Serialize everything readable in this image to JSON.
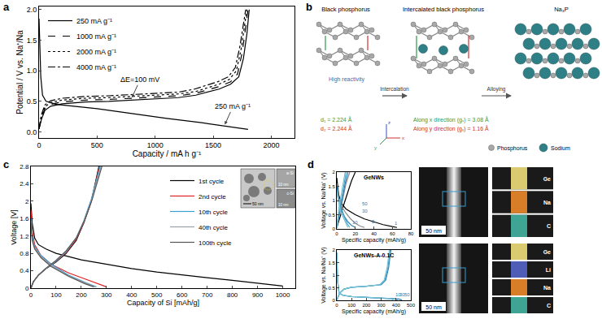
{
  "panel_labels": [
    "a",
    "b",
    "c",
    "d"
  ],
  "chart_data": [
    {
      "type": "line",
      "xlabel": "Capacity / mA h g⁻¹",
      "ylabel": "Potential / V vs. Na⁺/Na",
      "xlim": [
        0,
        2200
      ],
      "xticks": [
        0,
        500,
        1000,
        1500,
        2000
      ],
      "ylim": [
        -0.1,
        2.05
      ],
      "yticks": [
        {
          "value": 0,
          "label": "0.0"
        },
        0.5,
        {
          "value": 1,
          "label": "1.0"
        },
        1.5,
        {
          "value": 2,
          "label": "2.0"
        }
      ],
      "legend": "upper left",
      "series": [
        {
          "name": "250 mA g⁻¹",
          "color": "#000000",
          "line_style": "solid",
          "x": [
            0,
            5,
            15,
            30,
            60,
            150,
            300,
            500,
            800,
            1100,
            1400,
            1600,
            1750,
            1800,
            null,
            0,
            20,
            50,
            100,
            200,
            400,
            600,
            800,
            1000,
            1200,
            1350,
            1450,
            1550,
            1650,
            1720,
            1760,
            1790,
            1810
          ],
          "y": [
            1.85,
            1.4,
            0.9,
            0.6,
            0.5,
            0.45,
            0.42,
            0.38,
            0.3,
            0.22,
            0.15,
            0.1,
            0.06,
            0.04,
            null,
            0.05,
            0.2,
            0.35,
            0.42,
            0.46,
            0.49,
            0.5,
            0.52,
            0.54,
            0.56,
            0.6,
            0.65,
            0.7,
            0.78,
            0.9,
            1.2,
            1.6,
            2.0
          ]
        },
        {
          "name": "1000 mA g⁻¹",
          "color": "#000000",
          "line_style": "dash",
          "x": [
            0,
            20,
            50,
            100,
            200,
            400,
            600,
            800,
            1000,
            1200,
            1350,
            1450,
            1550,
            1650,
            1710,
            1750,
            1780,
            1800
          ],
          "y": [
            0.05,
            0.22,
            0.38,
            0.45,
            0.49,
            0.52,
            0.53,
            0.55,
            0.57,
            0.59,
            0.63,
            0.68,
            0.74,
            0.82,
            0.95,
            1.3,
            1.7,
            2.0
          ]
        },
        {
          "name": "2000 mA g⁻¹",
          "color": "#000000",
          "line_style": "dot",
          "x": [
            0,
            20,
            50,
            100,
            200,
            400,
            600,
            800,
            1000,
            1200,
            1350,
            1450,
            1550,
            1640,
            1700,
            1740,
            1770,
            1790
          ],
          "y": [
            0.05,
            0.25,
            0.41,
            0.48,
            0.52,
            0.55,
            0.56,
            0.58,
            0.6,
            0.62,
            0.66,
            0.72,
            0.78,
            0.86,
            1.0,
            1.35,
            1.75,
            2.0
          ]
        },
        {
          "name": "4000 mA g⁻¹",
          "color": "#000000",
          "line_style": "dashdot",
          "x": [
            0,
            20,
            50,
            100,
            200,
            400,
            600,
            800,
            1000,
            1200,
            1340,
            1440,
            1540,
            1630,
            1690,
            1730,
            1760,
            1780
          ],
          "y": [
            0.05,
            0.28,
            0.44,
            0.51,
            0.55,
            0.58,
            0.59,
            0.61,
            0.63,
            0.65,
            0.7,
            0.76,
            0.82,
            0.9,
            1.05,
            1.4,
            1.8,
            2.0
          ]
        }
      ],
      "annotations": [
        {
          "text": "ΔE=100 mV",
          "x": 800,
          "y": 0.56,
          "arrow": true
        },
        {
          "text": "250 mA g⁻¹",
          "x": 1600,
          "y": 0.12,
          "arrow": true
        }
      ]
    },
    {
      "type": "line",
      "xlabel": "Capacity of Si [mAh/g]",
      "ylabel": "Voltage [V]",
      "xlim": [
        0,
        1050
      ],
      "xticks": [
        0,
        100,
        200,
        300,
        400,
        500,
        600,
        700,
        800,
        900,
        1000
      ],
      "ylim": [
        0,
        2.8
      ],
      "yticks": [
        0,
        0.4,
        0.8,
        1.2,
        1.6,
        2,
        2.4,
        2.8
      ],
      "legend": "upper right",
      "series": [
        {
          "name": "1st cycle",
          "color": "#000000",
          "line_style": "solid",
          "x": [
            0,
            5,
            15,
            30,
            60,
            100,
            200,
            300,
            400,
            500,
            600,
            700,
            800,
            900,
            1000,
            null,
            0,
            10,
            30,
            60,
            100,
            140,
            180,
            210,
            240,
            260,
            270
          ],
          "y": [
            1.95,
            1.5,
            1.15,
            1.0,
            0.9,
            0.8,
            0.65,
            0.55,
            0.45,
            0.37,
            0.3,
            0.24,
            0.18,
            0.12,
            0.05,
            null,
            0,
            0.15,
            0.3,
            0.45,
            0.6,
            0.8,
            1.1,
            1.5,
            2.0,
            2.5,
            2.8
          ]
        },
        {
          "name": "2nd cycle",
          "color": "#e02020",
          "line_style": "solid",
          "x": [
            0,
            5,
            15,
            40,
            80,
            150,
            220,
            280,
            300,
            null,
            0,
            10,
            30,
            60,
            100,
            140,
            180,
            210,
            240,
            260,
            272
          ],
          "y": [
            1.8,
            1.3,
            1.0,
            0.75,
            0.55,
            0.35,
            0.2,
            0.08,
            0.03,
            null,
            0,
            0.15,
            0.3,
            0.45,
            0.62,
            0.82,
            1.12,
            1.5,
            2.0,
            2.5,
            2.8
          ]
        },
        {
          "name": "10th cycle",
          "color": "#3aa0d8",
          "line_style": "solid",
          "x": [
            0,
            5,
            15,
            40,
            80,
            150,
            220,
            260,
            null,
            0,
            10,
            30,
            60,
            100,
            140,
            180,
            210,
            240,
            262,
            275
          ],
          "y": [
            1.6,
            1.2,
            0.95,
            0.75,
            0.55,
            0.3,
            0.12,
            0.03,
            null,
            0,
            0.15,
            0.3,
            0.45,
            0.62,
            0.84,
            1.15,
            1.55,
            2.05,
            2.5,
            2.8
          ]
        },
        {
          "name": "40th cycle",
          "color": "#9aa0a6",
          "line_style": "solid",
          "x": [
            0,
            5,
            15,
            40,
            80,
            150,
            220,
            255,
            null,
            0,
            10,
            30,
            60,
            100,
            140,
            180,
            212,
            242,
            265,
            278
          ],
          "y": [
            1.55,
            1.15,
            0.92,
            0.72,
            0.52,
            0.28,
            0.11,
            0.03,
            null,
            0,
            0.15,
            0.3,
            0.46,
            0.63,
            0.85,
            1.16,
            1.56,
            2.05,
            2.5,
            2.8
          ]
        },
        {
          "name": "100th cycle",
          "color": "#555555",
          "line_style": "solid",
          "x": [
            0,
            5,
            15,
            40,
            80,
            150,
            215,
            250,
            null,
            0,
            10,
            30,
            60,
            100,
            140,
            182,
            214,
            244,
            268,
            282
          ],
          "y": [
            1.5,
            1.1,
            0.9,
            0.7,
            0.5,
            0.27,
            0.1,
            0.03,
            null,
            0,
            0.15,
            0.3,
            0.46,
            0.64,
            0.86,
            1.17,
            1.57,
            2.05,
            2.5,
            2.8
          ]
        }
      ]
    },
    {
      "type": "line",
      "title": "GeNWs",
      "xlabel": "Specific capacity (mAh/g)",
      "ylabel": "Voltage vs. Na/Na⁺ (V)",
      "xlim": [
        0,
        80
      ],
      "xticks": [
        0,
        20,
        40,
        60,
        80
      ],
      "ylim": [
        0,
        2
      ],
      "yticks": [
        0,
        0.5,
        1,
        1.5,
        2
      ],
      "series": [
        {
          "color": "#000000",
          "line_style": "solid",
          "x": [
            0,
            2,
            5,
            10,
            20,
            30,
            40,
            50,
            60,
            65,
            null,
            0,
            4,
            8,
            12,
            16,
            20
          ],
          "y": [
            1.8,
            1.2,
            0.9,
            0.7,
            0.5,
            0.35,
            0.25,
            0.15,
            0.08,
            0.05,
            null,
            0.05,
            0.5,
            0.9,
            1.3,
            1.7,
            2.0
          ]
        },
        {
          "color": "#8a8a8a",
          "line_style": "solid",
          "x": [
            0,
            2,
            5,
            10,
            15,
            20,
            25,
            30,
            null,
            0,
            3,
            6,
            10,
            14
          ],
          "y": [
            1.6,
            1.1,
            0.8,
            0.55,
            0.35,
            0.2,
            0.1,
            0.05,
            null,
            0.05,
            0.5,
            1.0,
            1.6,
            2.0
          ]
        },
        {
          "color": "#2a7fb8",
          "line_style": "solid",
          "x": [
            0,
            2,
            5,
            8,
            12,
            16,
            20,
            null,
            0,
            3,
            6,
            9,
            12
          ],
          "y": [
            1.5,
            1.0,
            0.7,
            0.45,
            0.25,
            0.12,
            0.05,
            null,
            0.05,
            0.6,
            1.1,
            1.6,
            2.0
          ]
        },
        {
          "color": "#4aa3c8",
          "line_style": "solid",
          "x": [
            0,
            2,
            5,
            8,
            11,
            14,
            null,
            0,
            3,
            6,
            8,
            10
          ],
          "y": [
            1.4,
            0.95,
            0.65,
            0.42,
            0.2,
            0.05,
            null,
            0.05,
            0.7,
            1.2,
            1.6,
            2.0
          ]
        },
        {
          "color": "#79c3d6",
          "line_style": "solid",
          "x": [
            0,
            2,
            4,
            7,
            10,
            12,
            null,
            0,
            2,
            5,
            7,
            9
          ],
          "y": [
            1.3,
            0.9,
            0.62,
            0.4,
            0.18,
            0.05,
            null,
            0.05,
            0.7,
            1.25,
            1.65,
            2.0
          ]
        }
      ],
      "annotations": [
        {
          "text": "1",
          "x": 64,
          "y": 0.2
        },
        {
          "text": "2",
          "x": 40,
          "y": 0.25
        },
        {
          "text": "10",
          "x": 20,
          "y": 0.22
        },
        {
          "text": "30",
          "x": 30,
          "y": 0.62
        },
        {
          "text": "50",
          "x": 30,
          "y": 0.88
        }
      ]
    },
    {
      "type": "line",
      "title": "GeNWs-A-0.1C",
      "xlabel": "Specific capacity (mAh/g)",
      "ylabel": "Voltage vs. Na/Na⁺ (V)",
      "xlim": [
        0,
        500
      ],
      "xticks": [
        0,
        100,
        200,
        300,
        400,
        500
      ],
      "ylim": [
        0,
        2
      ],
      "yticks": [
        0,
        0.5,
        1,
        1.5,
        2
      ],
      "series": [
        {
          "color": "#2a7fb8",
          "line_style": "solid",
          "x": [
            0,
            5,
            15,
            40,
            100,
            200,
            300,
            380,
            420,
            440,
            null,
            0,
            20,
            50,
            100,
            200,
            300,
            330,
            350,
            365
          ],
          "y": [
            1.9,
            0.8,
            0.3,
            0.2,
            0.15,
            0.12,
            0.1,
            0.08,
            0.05,
            0.01,
            null,
            0.01,
            0.3,
            0.45,
            0.52,
            0.56,
            0.62,
            0.8,
            1.3,
            2.0
          ]
        },
        {
          "color": "#4aa3c8",
          "line_style": "solid",
          "x": [
            0,
            5,
            15,
            40,
            100,
            200,
            300,
            370,
            395,
            410,
            null,
            0,
            20,
            50,
            100,
            200,
            295,
            325,
            345,
            360
          ],
          "y": [
            1.9,
            0.8,
            0.3,
            0.2,
            0.15,
            0.12,
            0.1,
            0.08,
            0.05,
            0.01,
            null,
            0.01,
            0.3,
            0.45,
            0.52,
            0.56,
            0.62,
            0.8,
            1.3,
            2.0
          ]
        },
        {
          "color": "#79c3d6",
          "line_style": "solid",
          "x": [
            0,
            5,
            15,
            40,
            100,
            200,
            300,
            350,
            370,
            380,
            null,
            0,
            20,
            50,
            100,
            200,
            290,
            320,
            340,
            355
          ],
          "y": [
            1.9,
            0.8,
            0.3,
            0.2,
            0.15,
            0.12,
            0.1,
            0.08,
            0.05,
            0.01,
            null,
            0.01,
            0.3,
            0.45,
            0.52,
            0.56,
            0.62,
            0.8,
            1.3,
            2.0
          ]
        }
      ],
      "annotations": [
        {
          "text": "10",
          "x": 415,
          "y": 0.22
        },
        {
          "text": "30",
          "x": 445,
          "y": 0.22
        },
        {
          "text": "50",
          "x": 475,
          "y": 0.22
        }
      ]
    }
  ],
  "diagram": {
    "panel": "b",
    "structures": [
      "Black phosphorus",
      "Intercalated black phosphorus",
      "Na₃P"
    ],
    "arrows": [
      "Intercalation",
      "Alloying"
    ],
    "notes": {
      "reactivity": "High reactivity",
      "d1": "d₁ = 2.224 Å",
      "d2": "d₂ = 2.244 Å",
      "gx": "Along x direction (gₓ) = 3.08 Å",
      "gy": "Along y direction (gᵧ) = 1.16 Å"
    },
    "axes": [
      "x",
      "y",
      "z"
    ],
    "key": [
      "Phosphorus",
      "Sodium"
    ]
  },
  "images": {
    "c_inset": {
      "main": "50 nm",
      "small": [
        {
          "phase": "a-Si",
          "scale": "10 nm"
        },
        {
          "phase": "c-Si",
          "scale": "10 nm"
        }
      ]
    },
    "d": [
      {
        "scale": "50 nm",
        "maps": [
          "Ge",
          "Na",
          "C"
        ]
      },
      {
        "scale": "50 nm",
        "maps": [
          "Ge",
          "Li",
          "Na",
          "C"
        ]
      }
    ]
  }
}
